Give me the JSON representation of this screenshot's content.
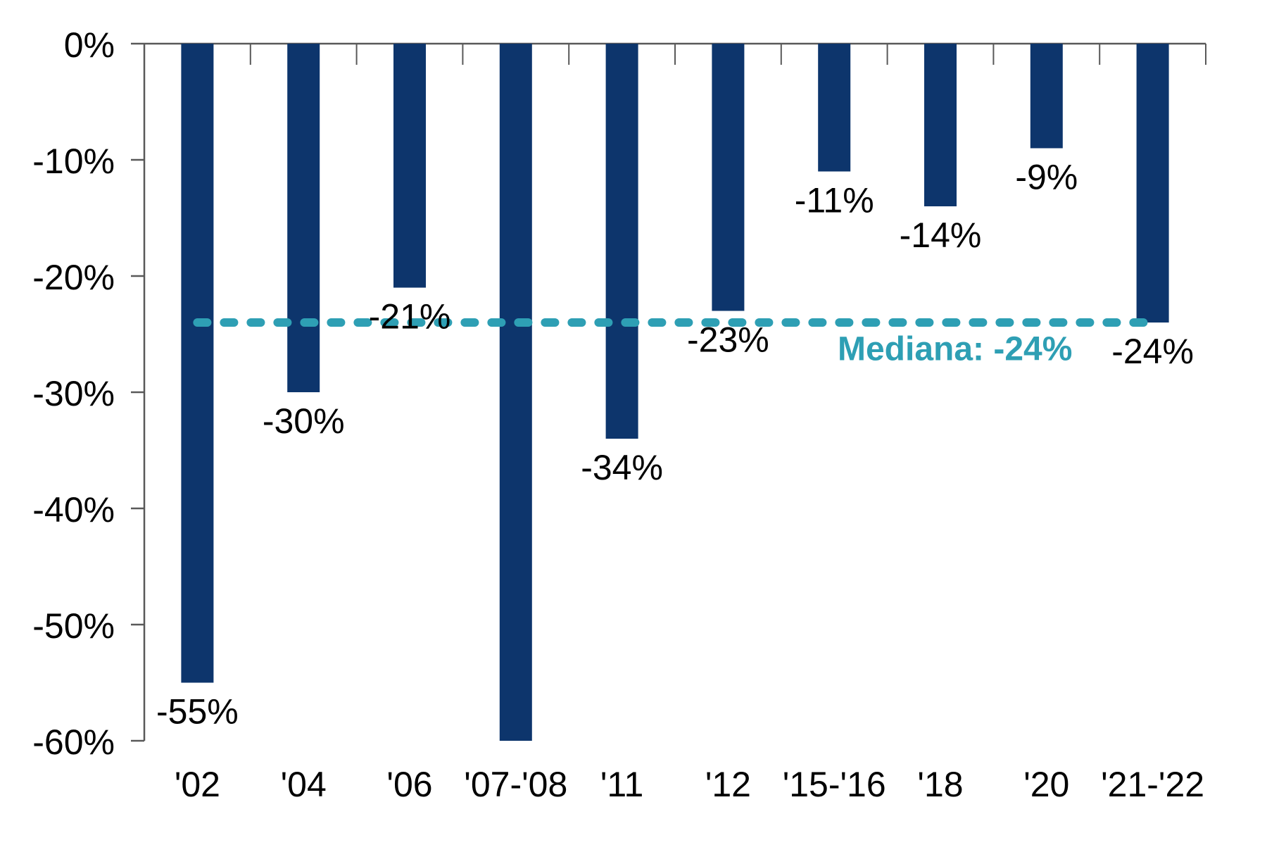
{
  "chart_data": {
    "type": "bar",
    "title": "",
    "xlabel": "",
    "ylabel": "",
    "categories": [
      "'02",
      "'04",
      "'06",
      "'07-'08",
      "'11",
      "'12",
      "'15-'16",
      "'18",
      "'20",
      "'21-'22"
    ],
    "values": [
      -55,
      -30,
      -21,
      -60,
      -34,
      -23,
      -11,
      -14,
      -9,
      -24
    ],
    "bar_labels": [
      "-55%",
      "-30%",
      "-21%",
      "",
      "-34%",
      "-23%",
      "-11%",
      "-14%",
      "-9%",
      "-24%"
    ],
    "y_axis": {
      "tick_labels": [
        "0%",
        "-10%",
        "-20%",
        "-30%",
        "-40%",
        "-50%",
        "-60%"
      ],
      "tick_values": [
        0,
        -10,
        -20,
        -30,
        -40,
        -50,
        -60
      ],
      "ylim": [
        -60,
        0
      ]
    },
    "median": {
      "value": -24,
      "label": "Mediana: -24%"
    },
    "legend": {
      "visible": false
    },
    "grid": "off",
    "colors": {
      "bar": "#0D356C",
      "median_line": "#2E9FB4",
      "median_label": "#2E9FB4",
      "value_label": "#000000",
      "tick_label": "#000000",
      "axis": "#595959",
      "background": "#FFFFFF"
    }
  }
}
